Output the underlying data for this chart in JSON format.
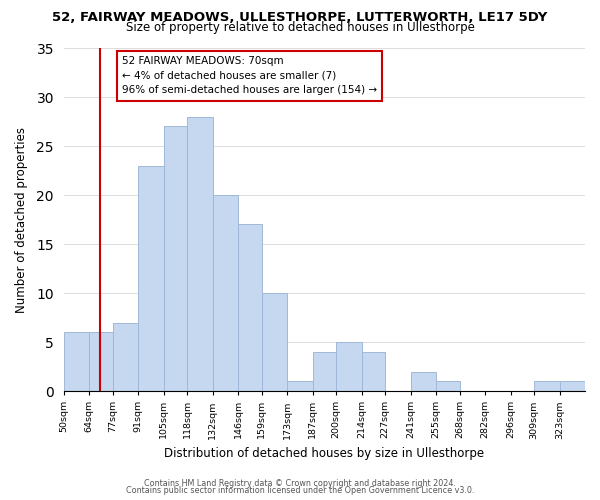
{
  "title_line1": "52, FAIRWAY MEADOWS, ULLESTHORPE, LUTTERWORTH, LE17 5DY",
  "title_line2": "Size of property relative to detached houses in Ullesthorpe",
  "xlabel": "Distribution of detached houses by size in Ullesthorpe",
  "ylabel": "Number of detached properties",
  "bin_labels": [
    "50sqm",
    "64sqm",
    "77sqm",
    "91sqm",
    "105sqm",
    "118sqm",
    "132sqm",
    "146sqm",
    "159sqm",
    "173sqm",
    "187sqm",
    "200sqm",
    "214sqm",
    "227sqm",
    "241sqm",
    "255sqm",
    "268sqm",
    "282sqm",
    "296sqm",
    "309sqm",
    "323sqm"
  ],
  "bar_values": [
    6,
    6,
    7,
    23,
    27,
    28,
    20,
    17,
    10,
    1,
    4,
    5,
    4,
    0,
    2,
    1,
    0,
    0,
    0,
    1,
    1
  ],
  "bin_edges": [
    50,
    64,
    77,
    91,
    105,
    118,
    132,
    146,
    159,
    173,
    187,
    200,
    214,
    227,
    241,
    255,
    268,
    282,
    296,
    309,
    323,
    337
  ],
  "bar_color": "#c5d8f0",
  "bar_edge_color": "#a0b8d8",
  "vline_x": 70,
  "vline_color": "#cc0000",
  "annotation_text": "52 FAIRWAY MEADOWS: 70sqm\n← 4% of detached houses are smaller (7)\n96% of semi-detached houses are larger (154) →",
  "annotation_box_color": "#ffffff",
  "annotation_box_edge_color": "#cc0000",
  "ylim": [
    0,
    35
  ],
  "yticks": [
    0,
    5,
    10,
    15,
    20,
    25,
    30,
    35
  ],
  "footer_line1": "Contains HM Land Registry data © Crown copyright and database right 2024.",
  "footer_line2": "Contains public sector information licensed under the Open Government Licence v3.0.",
  "bg_color": "#ffffff",
  "grid_color": "#dddddd"
}
